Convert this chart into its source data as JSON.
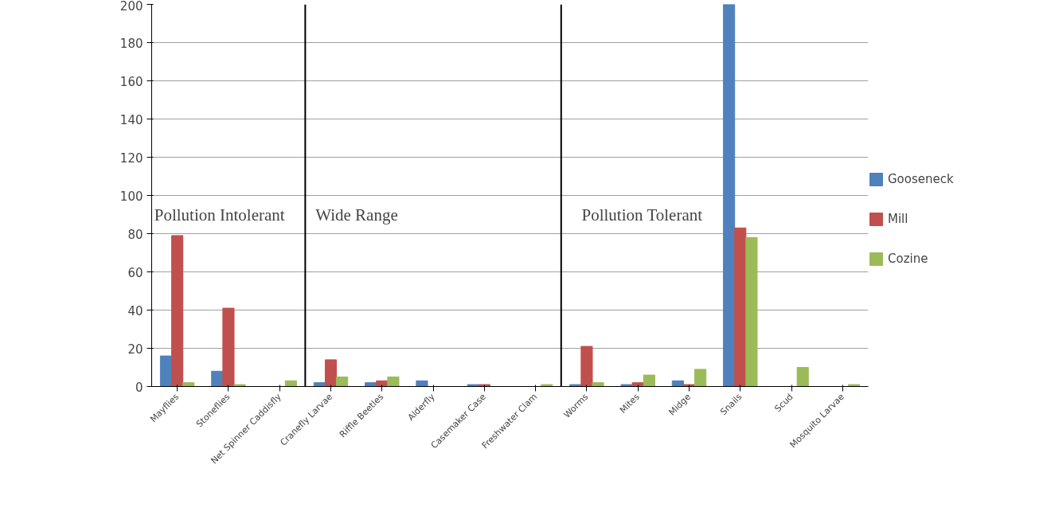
{
  "chart_data": {
    "type": "bar",
    "categories": [
      "Mayflies",
      "Stoneflies",
      "Net Spinner Caddisfly",
      "Cranefly Larvae",
      "Riffle Beetles",
      "Alderfly",
      "Casemaker Case",
      "Freshwater Clam",
      "Worms",
      "Mites",
      "Midge",
      "Snails",
      "Scud",
      "Mosquito Larvae"
    ],
    "series": [
      {
        "name": "Gooseneck",
        "color": "#4f81bd",
        "values": [
          16,
          8,
          null,
          2,
          2,
          3,
          1,
          null,
          1,
          1,
          3,
          200,
          null,
          null
        ]
      },
      {
        "name": "Mill",
        "color": "#c0504d",
        "values": [
          79,
          41,
          null,
          14,
          3,
          null,
          1,
          null,
          21,
          2,
          1,
          83,
          null,
          null
        ]
      },
      {
        "name": "Cozine",
        "color": "#9bbb59",
        "values": [
          2,
          1,
          3,
          5,
          5,
          null,
          null,
          1,
          2,
          6,
          9,
          78,
          10,
          1
        ]
      }
    ],
    "ylim": [
      0,
      200
    ],
    "yticks": [
      0,
      20,
      40,
      60,
      80,
      100,
      120,
      140,
      160,
      180,
      200
    ],
    "grid": "y",
    "legend": "right",
    "annotations": [
      "Pollution Intolerant",
      "Wide Range",
      "Pollution Tolerant"
    ]
  }
}
